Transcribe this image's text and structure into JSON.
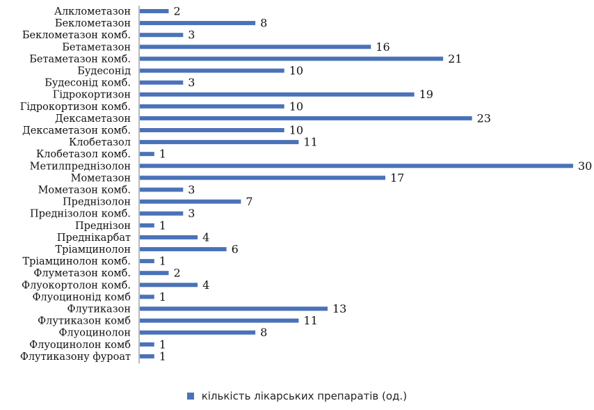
{
  "chart_data": {
    "type": "bar",
    "orientation": "horizontal",
    "categories": [
      "Алклометазон",
      "Беклометазон",
      "Беклометазон комб.",
      "Бетаметазон",
      "Бетаметазон комб.",
      "Будесонід",
      "Будесонід комб.",
      "Гідрокортизон",
      "Гідрокортизон комб.",
      "Дексаметазон",
      "Дексаметазон комб.",
      "Клобетазол",
      "Клобетазол комб.",
      "Метилпреднізолон",
      "Мометазон",
      "Мометазон комб.",
      "Преднізолон",
      "Преднізолон комб.",
      "Преднізон",
      "Преднікарбат",
      "Тріамцинолон",
      "Тріамцинолон комб.",
      "Флуметазон комб.",
      "Флуокортолон комб.",
      "Флуоцинонід комб",
      "Флутиказон",
      "Флутиказон комб",
      "Флуоцинолон",
      "Флуоцинолон комб",
      "Флутиказону фуроат"
    ],
    "series": [
      {
        "name": "кількість лікарських препаратів (од.)",
        "values": [
          2,
          8,
          3,
          16,
          21,
          10,
          3,
          19,
          10,
          23,
          10,
          11,
          1,
          30,
          17,
          3,
          7,
          3,
          1,
          4,
          6,
          1,
          2,
          4,
          1,
          13,
          11,
          8,
          1,
          1
        ]
      }
    ],
    "xlim": [
      0,
      30
    ],
    "grid": false,
    "legend_position": "bottom",
    "bar_color": "#4A72B8",
    "axis_color": "#8C8C8C",
    "title": "",
    "xlabel": "",
    "ylabel": ""
  }
}
